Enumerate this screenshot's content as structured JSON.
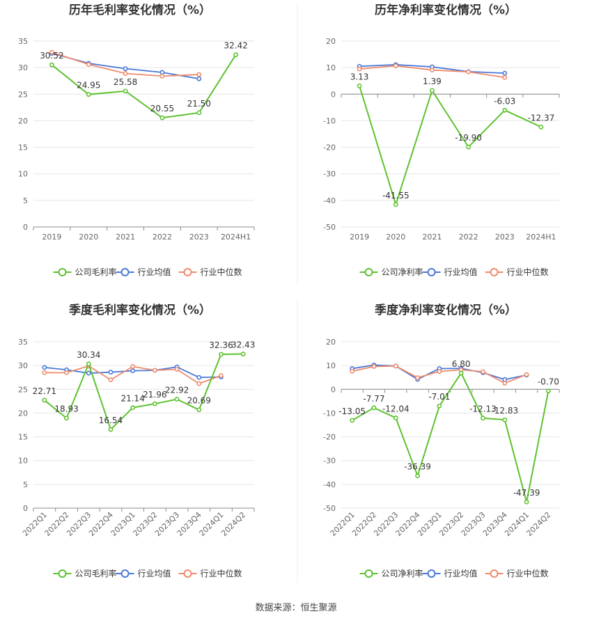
{
  "source_text": "数据来源：恒生聚源",
  "colors": {
    "company": "#5dc22f",
    "industry_avg": "#4a78d8",
    "industry_median": "#ef8a6b",
    "grid": "#e6e6e6",
    "axis": "#666666",
    "label": "#333333"
  },
  "chart_data": [
    {
      "type": "line",
      "title": "历年毛利率变化情况（%）",
      "categories": [
        "2019",
        "2020",
        "2021",
        "2022",
        "2023",
        "2024H1"
      ],
      "ylim": [
        0,
        35
      ],
      "yticks": [
        0,
        5,
        10,
        15,
        20,
        25,
        30,
        35
      ],
      "grid": true,
      "legend_position": "bottom",
      "rotate_x_labels": false,
      "series": [
        {
          "name": "公司毛利率",
          "key": "company",
          "values": [
            30.52,
            24.95,
            25.58,
            20.55,
            21.5,
            32.42
          ],
          "labels": [
            "30.52",
            "24.95",
            "25.58",
            "20.55",
            "21.50",
            "32.42"
          ]
        },
        {
          "name": "行业均值",
          "key": "industry_avg",
          "values": [
            32.7,
            30.8,
            29.8,
            29.1,
            27.9,
            null
          ]
        },
        {
          "name": "行业中位数",
          "key": "industry_median",
          "values": [
            32.9,
            30.6,
            28.9,
            28.4,
            28.7,
            null
          ]
        }
      ]
    },
    {
      "type": "line",
      "title": "历年净利率变化情况（%）",
      "categories": [
        "2019",
        "2020",
        "2021",
        "2022",
        "2023",
        "2024H1"
      ],
      "ylim": [
        -50,
        20
      ],
      "yticks": [
        -50,
        -40,
        -30,
        -20,
        -10,
        0,
        10,
        20
      ],
      "grid": true,
      "legend_position": "bottom",
      "rotate_x_labels": false,
      "series": [
        {
          "name": "公司净利率",
          "key": "company",
          "values": [
            3.13,
            -41.55,
            1.39,
            -19.9,
            -6.03,
            -12.37
          ],
          "labels": [
            "3.13",
            "-41.55",
            "1.39",
            "-19.90",
            "-6.03",
            "-12.37"
          ]
        },
        {
          "name": "行业均值",
          "key": "industry_avg",
          "values": [
            10.5,
            11.1,
            10.3,
            8.5,
            7.9,
            null
          ]
        },
        {
          "name": "行业中位数",
          "key": "industry_median",
          "values": [
            9.5,
            10.7,
            9.1,
            8.4,
            6.3,
            null
          ]
        }
      ]
    },
    {
      "type": "line",
      "title": "季度毛利率变化情况（%）",
      "categories": [
        "2022Q1",
        "2022Q2",
        "2022Q3",
        "2022Q4",
        "2023Q1",
        "2023Q2",
        "2023Q3",
        "2023Q4",
        "2024Q1",
        "2024Q2"
      ],
      "ylim": [
        0,
        35
      ],
      "yticks": [
        0,
        5,
        10,
        15,
        20,
        25,
        30,
        35
      ],
      "grid": true,
      "legend_position": "bottom",
      "rotate_x_labels": true,
      "series": [
        {
          "name": "公司毛利率",
          "key": "company",
          "values": [
            22.71,
            18.93,
            30.34,
            16.54,
            21.14,
            21.96,
            22.92,
            20.69,
            32.36,
            32.43
          ],
          "labels": [
            "22.71",
            "18.93",
            "30.34",
            "16.54",
            "21.14",
            "21.96",
            "22.92",
            "20.69",
            "32.36",
            "32.43"
          ]
        },
        {
          "name": "行业均值",
          "key": "industry_avg",
          "values": [
            29.6,
            29.1,
            28.4,
            28.6,
            28.9,
            29.0,
            29.7,
            27.5,
            27.6,
            null
          ]
        },
        {
          "name": "行业中位数",
          "key": "industry_median",
          "values": [
            28.5,
            28.5,
            29.9,
            27.0,
            29.8,
            29.0,
            29.2,
            26.2,
            27.9,
            null
          ]
        }
      ]
    },
    {
      "type": "line",
      "title": "季度净利率变化情况（%）",
      "categories": [
        "2022Q1",
        "2022Q2",
        "2022Q3",
        "2022Q4",
        "2023Q1",
        "2023Q2",
        "2023Q3",
        "2023Q4",
        "2024Q1",
        "2024Q2"
      ],
      "ylim": [
        -50,
        20
      ],
      "yticks": [
        -50,
        -40,
        -30,
        -20,
        -10,
        0,
        10,
        20
      ],
      "grid": true,
      "legend_position": "bottom",
      "rotate_x_labels": true,
      "series": [
        {
          "name": "公司净利率",
          "key": "company",
          "values": [
            -13.05,
            -7.77,
            -12.04,
            -36.39,
            -7.01,
            6.8,
            -12.13,
            -12.83,
            -47.39,
            -0.7
          ],
          "labels": [
            "-13.05",
            "-7.77",
            "-12.04",
            "-36.39",
            "-7.01",
            "6.80",
            "-12.13",
            "-12.83",
            "-47.39",
            "-0.70"
          ]
        },
        {
          "name": "行业均值",
          "key": "industry_avg",
          "values": [
            8.7,
            10.2,
            9.8,
            4.2,
            8.7,
            8.8,
            7.0,
            4.1,
            6.0,
            null
          ]
        },
        {
          "name": "行业中位数",
          "key": "industry_median",
          "values": [
            7.6,
            9.6,
            9.8,
            4.9,
            7.5,
            8.2,
            7.4,
            2.6,
            6.2,
            null
          ]
        }
      ]
    }
  ]
}
